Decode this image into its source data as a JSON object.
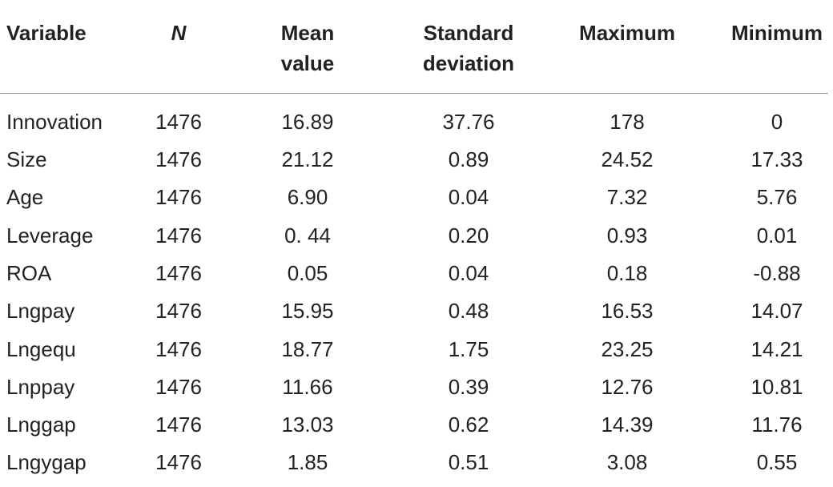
{
  "headers": {
    "variable": "Variable",
    "n": "N",
    "mean_l1": "Mean",
    "mean_l2": "value",
    "sd_l1": "Standard",
    "sd_l2": "deviation",
    "max": "Maximum",
    "min": "Minimum"
  },
  "rows": [
    {
      "variable": "Innovation",
      "n": "1476",
      "mean": "16.89",
      "sd": "37.76",
      "max": "178",
      "min": "0"
    },
    {
      "variable": "Size",
      "n": "1476",
      "mean": "21.12",
      "sd": "0.89",
      "max": "24.52",
      "min": "17.33"
    },
    {
      "variable": "Age",
      "n": "1476",
      "mean": "6.90",
      "sd": "0.04",
      "max": "7.32",
      "min": "5.76"
    },
    {
      "variable": "Leverage",
      "n": "1476",
      "mean": "0. 44",
      "sd": "0.20",
      "max": "0.93",
      "min": "0.01"
    },
    {
      "variable": "ROA",
      "n": "1476",
      "mean": "0.05",
      "sd": "0.04",
      "max": "0.18",
      "min": "-0.88"
    },
    {
      "variable": "Lngpay",
      "n": "1476",
      "mean": "15.95",
      "sd": "0.48",
      "max": "16.53",
      "min": "14.07"
    },
    {
      "variable": "Lngequ",
      "n": "1476",
      "mean": "18.77",
      "sd": "1.75",
      "max": "23.25",
      "min": "14.21"
    },
    {
      "variable": "Lnppay",
      "n": "1476",
      "mean": "11.66",
      "sd": "0.39",
      "max": "12.76",
      "min": "10.81"
    },
    {
      "variable": "Lnggap",
      "n": "1476",
      "mean": "13.03",
      "sd": "0.62",
      "max": "14.39",
      "min": "11.76"
    },
    {
      "variable": "Lngygap",
      "n": "1476",
      "mean": "1.85",
      "sd": "0.51",
      "max": "3.08",
      "min": "0.55"
    }
  ]
}
